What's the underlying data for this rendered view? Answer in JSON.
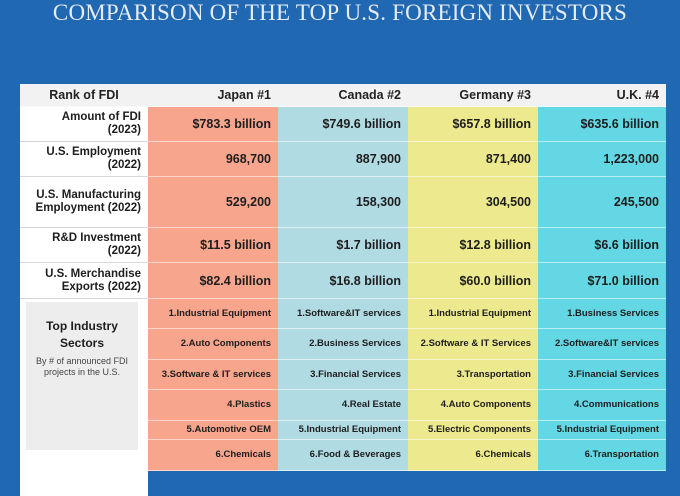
{
  "title": "COMPARISON OF THE TOP U.S. FOREIGN INVESTORS",
  "header": {
    "first": "Rank of FDI",
    "countries": [
      "Japan #1",
      "Canada #2",
      "Germany #3",
      "U.K. #4"
    ]
  },
  "metrics": [
    {
      "label": "Amount of FDI (2023)",
      "values": [
        "$783.3 billion",
        "$749.6 billion",
        "$657.8 billion",
        "$635.6 billion"
      ]
    },
    {
      "label": "U.S. Employment (2022)",
      "values": [
        "968,700",
        "887,900",
        "871,400",
        "1,223,000"
      ]
    },
    {
      "label": "U.S. Manufacturing Employment (2022)",
      "values": [
        "529,200",
        "158,300",
        "304,500",
        "245,500"
      ]
    },
    {
      "label": "R&D Investment (2022)",
      "values": [
        "$11.5 billion",
        "$1.7 billion",
        "$12.8 billion",
        "$6.6 billion"
      ]
    },
    {
      "label": "U.S. Merchandise Exports (2022)",
      "values": [
        "$82.4 billion",
        "$16.8 billion",
        "$60.0 billion",
        "$71.0 billion"
      ]
    }
  ],
  "sectors_label": {
    "title": "Top Industry Sectors",
    "subtitle": "By # of announced FDI projects in the U.S."
  },
  "sectors": [
    [
      "1.Industrial Equipment",
      "1.Software&IT services",
      "1.Industrial Equipment",
      "1.Business Services"
    ],
    [
      "2.Auto Components",
      "2.Business Services",
      "2.Software & IT Services",
      "2.Software&IT services"
    ],
    [
      "3.Software & IT services",
      "3.Financial Services",
      "3.Transportation",
      "3.Financial Services"
    ],
    [
      "4.Plastics",
      "4.Real Estate",
      "4.Auto Components",
      "4.Communications"
    ],
    [
      "5.Automotive OEM",
      "5.Industrial Equipment",
      "5.Electric Components",
      "5.Industrial Equipment"
    ],
    [
      "6.Chemicals",
      "6.Food & Beverages",
      "6.Chemicals",
      "6.Transportation"
    ]
  ],
  "colors": {
    "background": "#2168b2",
    "japan": "#f8a58e",
    "canada": "#b1dbe2",
    "germany": "#ede98e",
    "uk": "#63d7e3"
  }
}
